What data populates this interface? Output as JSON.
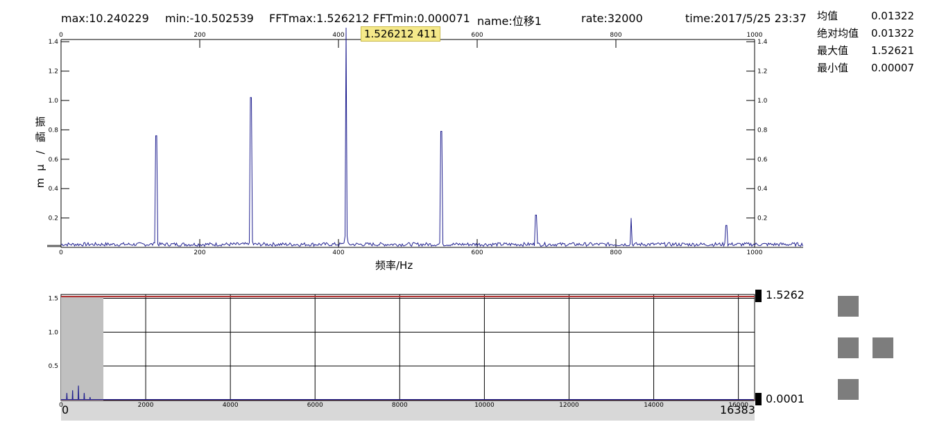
{
  "header": {
    "max": "max:10.240229",
    "min": "min:-10.502539",
    "fftmax": "FFTmax:1.526212",
    "fftmin": "FFTmin:0.000071",
    "name": "name:位移1",
    "rate": "rate:32000",
    "time": "time:2017/5/25 23:37"
  },
  "stats": [
    {
      "label": "均值",
      "value": "0.01322"
    },
    {
      "label": "绝对均值",
      "value": "0.01322"
    },
    {
      "label": "最大值",
      "value": "1.52621"
    },
    {
      "label": "最小值",
      "value": "0.00007"
    }
  ],
  "tooltip": "1.526212 411",
  "overview": {
    "max_marker": "1.5262",
    "min_marker": "0.0001",
    "range_start": "0",
    "range_end": "16383"
  },
  "colors": {
    "trace": "#1f1f8f",
    "limit_line": "#b03030",
    "window": "#c0c0c0",
    "nav": "#7d7d7d"
  },
  "icons": [
    "nav-up-icon",
    "nav-left-icon",
    "nav-right-icon",
    "nav-down-icon"
  ],
  "chart_data": [
    {
      "type": "line",
      "title": "",
      "xlabel": "频率/Hz",
      "ylabel": "振幅/μm",
      "xlim": [
        0,
        1070
      ],
      "ylim": [
        0,
        1.5
      ],
      "x_ticks": [
        0,
        200,
        400,
        600,
        800,
        1000
      ],
      "y_ticks": [
        0.2,
        0.4,
        0.6,
        0.8,
        1.0,
        1.2,
        1.4
      ],
      "noise_level": 0.02,
      "peaks": [
        {
          "x": 137,
          "y": 0.76
        },
        {
          "x": 274,
          "y": 1.02
        },
        {
          "x": 411,
          "y": 1.526
        },
        {
          "x": 548,
          "y": 0.79
        },
        {
          "x": 685,
          "y": 0.22
        },
        {
          "x": 822,
          "y": 0.2
        },
        {
          "x": 959,
          "y": 0.15
        }
      ],
      "grid": false
    },
    {
      "type": "line",
      "title": "",
      "xlim": [
        0,
        16383
      ],
      "ylim": [
        0,
        1.55
      ],
      "x_ticks": [
        0,
        2000,
        4000,
        6000,
        8000,
        10000,
        12000,
        14000,
        16000
      ],
      "y_ticks": [
        0.5,
        1.0,
        1.5
      ],
      "limit_line": 1.5262,
      "window": [
        0,
        1000
      ],
      "peaks": [
        {
          "x": 137,
          "y": 0.1
        },
        {
          "x": 274,
          "y": 0.14
        },
        {
          "x": 411,
          "y": 0.21
        },
        {
          "x": 548,
          "y": 0.1
        },
        {
          "x": 685,
          "y": 0.04
        }
      ],
      "grid": true
    }
  ]
}
